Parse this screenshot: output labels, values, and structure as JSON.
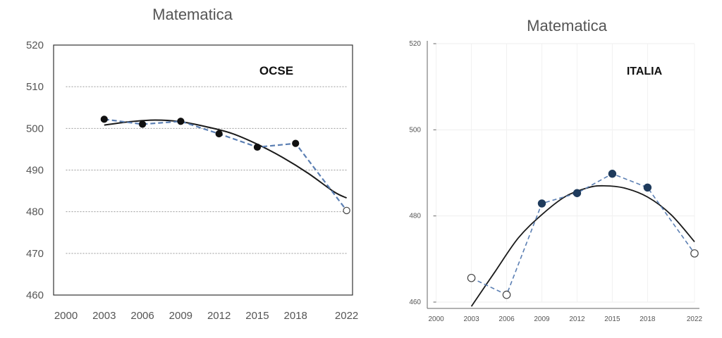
{
  "colors": {
    "trend": "#1a1a1a",
    "dashed_series": "#5b7fb3",
    "point_fill": "#111111",
    "point_fill_right": "#1f3b5c",
    "open_point": "#ffffff",
    "grid": "#9a9a9a"
  },
  "chart_data": [
    {
      "type": "line",
      "title": "Matematica",
      "annotation": "OCSE",
      "x_ticks": [
        "2000",
        "2003",
        "2006",
        "2009",
        "2012",
        "2015",
        "2018",
        "2022"
      ],
      "y_ticks": [
        "520",
        "510",
        "500",
        "490",
        "480",
        "470",
        "460"
      ],
      "xlim": [
        2000,
        2022
      ],
      "ylim": [
        460,
        520
      ],
      "grid": "horizontal dotted",
      "series": [
        {
          "style": "dashed with markers",
          "points": [
            {
              "x": 2003,
              "y": 502.2,
              "marker": "filled"
            },
            {
              "x": 2006,
              "y": 501.0,
              "marker": "filled"
            },
            {
              "x": 2009,
              "y": 501.7,
              "marker": "filled"
            },
            {
              "x": 2012,
              "y": 498.7,
              "marker": "filled"
            },
            {
              "x": 2015,
              "y": 495.5,
              "marker": "filled"
            },
            {
              "x": 2018,
              "y": 496.4,
              "marker": "filled"
            },
            {
              "x": 2022,
              "y": 480.3,
              "marker": "open"
            }
          ]
        },
        {
          "style": "solid trend curve",
          "points": [
            {
              "x": 2003,
              "y": 500.8
            },
            {
              "x": 2005,
              "y": 501.6
            },
            {
              "x": 2007,
              "y": 502.0
            },
            {
              "x": 2009,
              "y": 501.6
            },
            {
              "x": 2011,
              "y": 500.4
            },
            {
              "x": 2013,
              "y": 498.8
            },
            {
              "x": 2015,
              "y": 496.2
            },
            {
              "x": 2017,
              "y": 493.0
            },
            {
              "x": 2019,
              "y": 489.2
            },
            {
              "x": 2021,
              "y": 484.8
            },
            {
              "x": 2022,
              "y": 483.3
            }
          ]
        }
      ]
    },
    {
      "type": "line",
      "title": "Matematica",
      "annotation": "ITALIA",
      "x_ticks": [
        "2000",
        "2003",
        "2006",
        "2009",
        "2012",
        "2015",
        "2018",
        "2022"
      ],
      "y_ticks": [
        "520",
        "500",
        "480",
        "460"
      ],
      "xlim": [
        2000,
        2022
      ],
      "ylim": [
        460,
        520
      ],
      "grid": "faint",
      "series": [
        {
          "style": "dashed with markers",
          "points": [
            {
              "x": 2003,
              "y": 465.6,
              "marker": "open"
            },
            {
              "x": 2006,
              "y": 461.7,
              "marker": "open"
            },
            {
              "x": 2009,
              "y": 482.9,
              "marker": "filled"
            },
            {
              "x": 2012,
              "y": 485.3,
              "marker": "filled"
            },
            {
              "x": 2015,
              "y": 489.8,
              "marker": "filled"
            },
            {
              "x": 2018,
              "y": 486.6,
              "marker": "filled"
            },
            {
              "x": 2022,
              "y": 471.3,
              "marker": "open"
            }
          ]
        },
        {
          "style": "solid trend curve",
          "points": [
            {
              "x": 2003,
              "y": 459.0
            },
            {
              "x": 2005,
              "y": 467.0
            },
            {
              "x": 2007,
              "y": 474.9
            },
            {
              "x": 2009,
              "y": 480.3
            },
            {
              "x": 2011,
              "y": 484.5
            },
            {
              "x": 2013,
              "y": 486.6
            },
            {
              "x": 2014.3,
              "y": 487.0
            },
            {
              "x": 2016,
              "y": 486.5
            },
            {
              "x": 2018,
              "y": 484.4
            },
            {
              "x": 2020,
              "y": 480.3
            },
            {
              "x": 2022,
              "y": 474.0
            }
          ]
        }
      ]
    }
  ]
}
